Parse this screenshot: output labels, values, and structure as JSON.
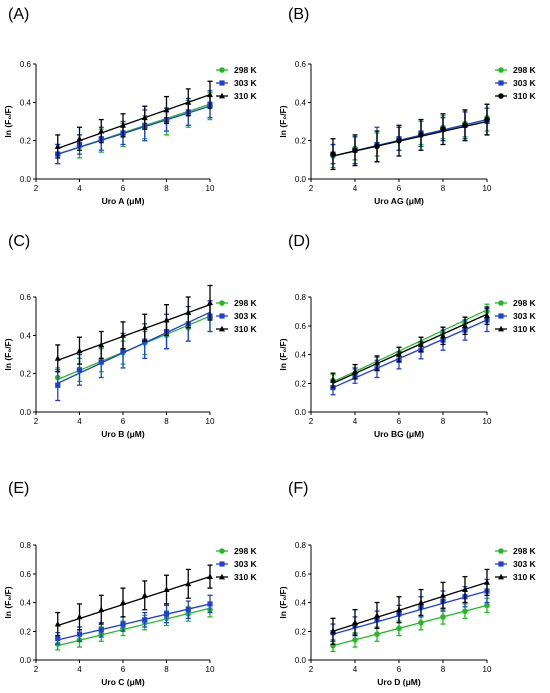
{
  "chart_data": [
    {
      "panel_label": "(A)",
      "type": "scatter",
      "xlabel": "Uro A (μM)",
      "ylabel": "ln (F₀/F)",
      "xlim": [
        2,
        10
      ],
      "ylim": [
        0,
        0.6
      ],
      "xticks": [
        "2",
        "4",
        "6",
        "8",
        "10"
      ],
      "yticks": [
        "0.0",
        "0.2",
        "0.4",
        "0.6"
      ],
      "x": [
        3,
        4,
        5,
        6,
        7,
        8,
        9,
        10
      ],
      "series": [
        {
          "name": "298 K",
          "color": "#22bb22",
          "marker": "circle",
          "values": [
            0.13,
            0.17,
            0.2,
            0.23,
            0.27,
            0.3,
            0.34,
            0.38
          ],
          "errors": [
            0.05,
            0.06,
            0.06,
            0.06,
            0.06,
            0.07,
            0.07,
            0.07
          ],
          "fit": [
            0.13,
            0.39
          ]
        },
        {
          "name": "303 K",
          "color": "#1f3fdd",
          "marker": "square",
          "values": [
            0.13,
            0.18,
            0.21,
            0.24,
            0.28,
            0.31,
            0.35,
            0.39
          ],
          "errors": [
            0.05,
            0.05,
            0.06,
            0.06,
            0.08,
            0.06,
            0.07,
            0.07
          ],
          "fit": [
            0.13,
            0.38
          ]
        },
        {
          "name": "310 K",
          "color": "#000000",
          "marker": "triangle",
          "values": [
            0.17,
            0.21,
            0.25,
            0.28,
            0.32,
            0.36,
            0.4,
            0.44
          ],
          "errors": [
            0.06,
            0.06,
            0.06,
            0.06,
            0.06,
            0.07,
            0.07,
            0.07
          ],
          "fit": [
            0.16,
            0.44
          ]
        }
      ],
      "legend": "right",
      "grid": false
    },
    {
      "panel_label": "(B)",
      "type": "scatter",
      "xlabel": "Uro AG (μM)",
      "ylabel": "ln (F₀/F)",
      "xlim": [
        2,
        10
      ],
      "ylim": [
        0,
        0.6
      ],
      "xticks": [
        "2",
        "4",
        "6",
        "8",
        "10"
      ],
      "yticks": [
        "0.0",
        "0.2",
        "0.4",
        "0.6"
      ],
      "x": [
        3,
        4,
        5,
        6,
        7,
        8,
        9,
        10
      ],
      "series": [
        {
          "name": "298 K",
          "color": "#22bb22",
          "marker": "circle",
          "values": [
            0.12,
            0.16,
            0.18,
            0.21,
            0.24,
            0.27,
            0.29,
            0.32
          ],
          "errors": [
            0.06,
            0.06,
            0.06,
            0.06,
            0.06,
            0.06,
            0.07,
            0.07
          ],
          "fit": [
            0.12,
            0.31
          ]
        },
        {
          "name": "303 K",
          "color": "#1f3fdd",
          "marker": "square",
          "values": [
            0.13,
            0.15,
            0.18,
            0.21,
            0.24,
            0.26,
            0.28,
            0.3
          ],
          "errors": [
            0.05,
            0.07,
            0.09,
            0.06,
            0.07,
            0.06,
            0.07,
            0.07
          ],
          "fit": [
            0.12,
            0.31
          ]
        },
        {
          "name": "310 K",
          "color": "#000000",
          "marker": "circle",
          "values": [
            0.13,
            0.15,
            0.17,
            0.2,
            0.23,
            0.26,
            0.28,
            0.31
          ],
          "errors": [
            0.08,
            0.08,
            0.08,
            0.08,
            0.08,
            0.08,
            0.08,
            0.08
          ],
          "fit": [
            0.12,
            0.3
          ]
        }
      ],
      "legend": "right",
      "grid": false
    },
    {
      "panel_label": "(C)",
      "type": "scatter",
      "xlabel": "Uro B (μM)",
      "ylabel": "ln (F₀/F)",
      "xlim": [
        2,
        10
      ],
      "ylim": [
        0,
        0.6
      ],
      "xticks": [
        "2",
        "4",
        "6",
        "8",
        "10"
      ],
      "yticks": [
        "0.0",
        "0.2",
        "0.4",
        "0.6"
      ],
      "x": [
        3,
        4,
        5,
        6,
        7,
        8,
        9,
        10
      ],
      "series": [
        {
          "name": "298 K",
          "color": "#22bb22",
          "marker": "circle",
          "values": [
            0.18,
            0.22,
            0.27,
            0.31,
            0.36,
            0.4,
            0.44,
            0.49
          ],
          "errors": [
            0.05,
            0.06,
            0.06,
            0.06,
            0.06,
            0.07,
            0.07,
            0.07
          ],
          "fit": [
            0.17,
            0.5
          ]
        },
        {
          "name": "303 K",
          "color": "#1f3fdd",
          "marker": "square",
          "values": [
            0.14,
            0.22,
            0.26,
            0.32,
            0.37,
            0.42,
            0.46,
            0.5
          ],
          "errors": [
            0.08,
            0.08,
            0.08,
            0.09,
            0.09,
            0.09,
            0.09,
            0.08
          ],
          "fit": [
            0.15,
            0.52
          ]
        },
        {
          "name": "310 K",
          "color": "#000000",
          "marker": "triangle",
          "values": [
            0.28,
            0.32,
            0.35,
            0.4,
            0.44,
            0.48,
            0.52,
            0.57
          ],
          "errors": [
            0.07,
            0.07,
            0.07,
            0.07,
            0.07,
            0.08,
            0.08,
            0.09
          ],
          "fit": [
            0.27,
            0.56
          ]
        }
      ],
      "legend": "right",
      "grid": false
    },
    {
      "panel_label": "(D)",
      "type": "scatter",
      "xlabel": "Uro BG (μM)",
      "ylabel": "ln (F₀/F)",
      "xlim": [
        2,
        10
      ],
      "ylim": [
        0,
        0.8
      ],
      "xticks": [
        "2",
        "4",
        "6",
        "8",
        "10"
      ],
      "yticks": [
        "0.0",
        "0.2",
        "0.4",
        "0.6",
        "0.8"
      ],
      "x": [
        3,
        4,
        5,
        6,
        7,
        8,
        9,
        10
      ],
      "series": [
        {
          "name": "298 K",
          "color": "#22bb22",
          "marker": "circle",
          "values": [
            0.22,
            0.27,
            0.34,
            0.41,
            0.48,
            0.55,
            0.62,
            0.7
          ],
          "errors": [
            0.04,
            0.04,
            0.04,
            0.04,
            0.04,
            0.04,
            0.04,
            0.05
          ],
          "fit": [
            0.21,
            0.71
          ]
        },
        {
          "name": "303 K",
          "color": "#1f3fdd",
          "marker": "square",
          "values": [
            0.17,
            0.25,
            0.3,
            0.36,
            0.43,
            0.5,
            0.57,
            0.64
          ],
          "errors": [
            0.05,
            0.05,
            0.06,
            0.06,
            0.06,
            0.07,
            0.07,
            0.08
          ],
          "fit": [
            0.17,
            0.64
          ]
        },
        {
          "name": "310 K",
          "color": "#000000",
          "marker": "triangle",
          "values": [
            0.22,
            0.28,
            0.34,
            0.4,
            0.47,
            0.53,
            0.6,
            0.67
          ],
          "errors": [
            0.05,
            0.05,
            0.05,
            0.05,
            0.05,
            0.06,
            0.06,
            0.06
          ],
          "fit": [
            0.2,
            0.68
          ]
        }
      ],
      "legend": "right",
      "grid": false
    },
    {
      "panel_label": "(E)",
      "type": "scatter",
      "xlabel": "Uro C (μM)",
      "ylabel": "ln (F₀/F)",
      "xlim": [
        2,
        10
      ],
      "ylim": [
        0,
        0.8
      ],
      "xticks": [
        "2",
        "4",
        "6",
        "8",
        "10"
      ],
      "yticks": [
        "0.0",
        "0.2",
        "0.4",
        "0.6",
        "0.8"
      ],
      "x": [
        3,
        4,
        5,
        6,
        7,
        8,
        9,
        10
      ],
      "series": [
        {
          "name": "298 K",
          "color": "#22bb22",
          "marker": "circle",
          "values": [
            0.11,
            0.14,
            0.18,
            0.22,
            0.26,
            0.29,
            0.32,
            0.35
          ],
          "errors": [
            0.04,
            0.05,
            0.05,
            0.05,
            0.05,
            0.05,
            0.05,
            0.05
          ],
          "fit": [
            0.1,
            0.36
          ]
        },
        {
          "name": "303 K",
          "color": "#1f3fdd",
          "marker": "square",
          "values": [
            0.15,
            0.18,
            0.21,
            0.25,
            0.28,
            0.32,
            0.35,
            0.39
          ],
          "errors": [
            0.04,
            0.05,
            0.05,
            0.05,
            0.05,
            0.06,
            0.06,
            0.06
          ],
          "fit": [
            0.14,
            0.39
          ]
        },
        {
          "name": "310 K",
          "color": "#000000",
          "marker": "triangle",
          "values": [
            0.25,
            0.3,
            0.35,
            0.4,
            0.45,
            0.49,
            0.53,
            0.58
          ],
          "errors": [
            0.08,
            0.09,
            0.1,
            0.1,
            0.1,
            0.1,
            0.1,
            0.08
          ],
          "fit": [
            0.24,
            0.58
          ]
        }
      ],
      "legend": "right",
      "grid": false
    },
    {
      "panel_label": "(F)",
      "type": "scatter",
      "xlabel": "Uro D (μM)",
      "ylabel": "ln (F₀/F)",
      "xlim": [
        2,
        10
      ],
      "ylim": [
        0,
        0.8
      ],
      "xticks": [
        "2",
        "4",
        "6",
        "8",
        "10"
      ],
      "yticks": [
        "0.0",
        "0.2",
        "0.4",
        "0.6",
        "0.8"
      ],
      "x": [
        3,
        4,
        5,
        6,
        7,
        8,
        9,
        10
      ],
      "series": [
        {
          "name": "298 K",
          "color": "#22bb22",
          "marker": "circle",
          "values": [
            0.1,
            0.14,
            0.18,
            0.22,
            0.26,
            0.3,
            0.34,
            0.38
          ],
          "errors": [
            0.04,
            0.05,
            0.05,
            0.05,
            0.05,
            0.05,
            0.05,
            0.05
          ],
          "fit": [
            0.1,
            0.38
          ]
        },
        {
          "name": "303 K",
          "color": "#1f3fdd",
          "marker": "square",
          "values": [
            0.19,
            0.24,
            0.28,
            0.32,
            0.37,
            0.41,
            0.44,
            0.48
          ],
          "errors": [
            0.06,
            0.06,
            0.06,
            0.06,
            0.07,
            0.07,
            0.07,
            0.08
          ],
          "fit": [
            0.18,
            0.48
          ]
        },
        {
          "name": "310 K",
          "color": "#000000",
          "marker": "triangle",
          "values": [
            0.2,
            0.26,
            0.31,
            0.35,
            0.4,
            0.45,
            0.49,
            0.54
          ],
          "errors": [
            0.09,
            0.09,
            0.09,
            0.09,
            0.09,
            0.09,
            0.09,
            0.09
          ],
          "fit": [
            0.2,
            0.54
          ]
        }
      ],
      "legend": "right",
      "grid": false
    }
  ]
}
